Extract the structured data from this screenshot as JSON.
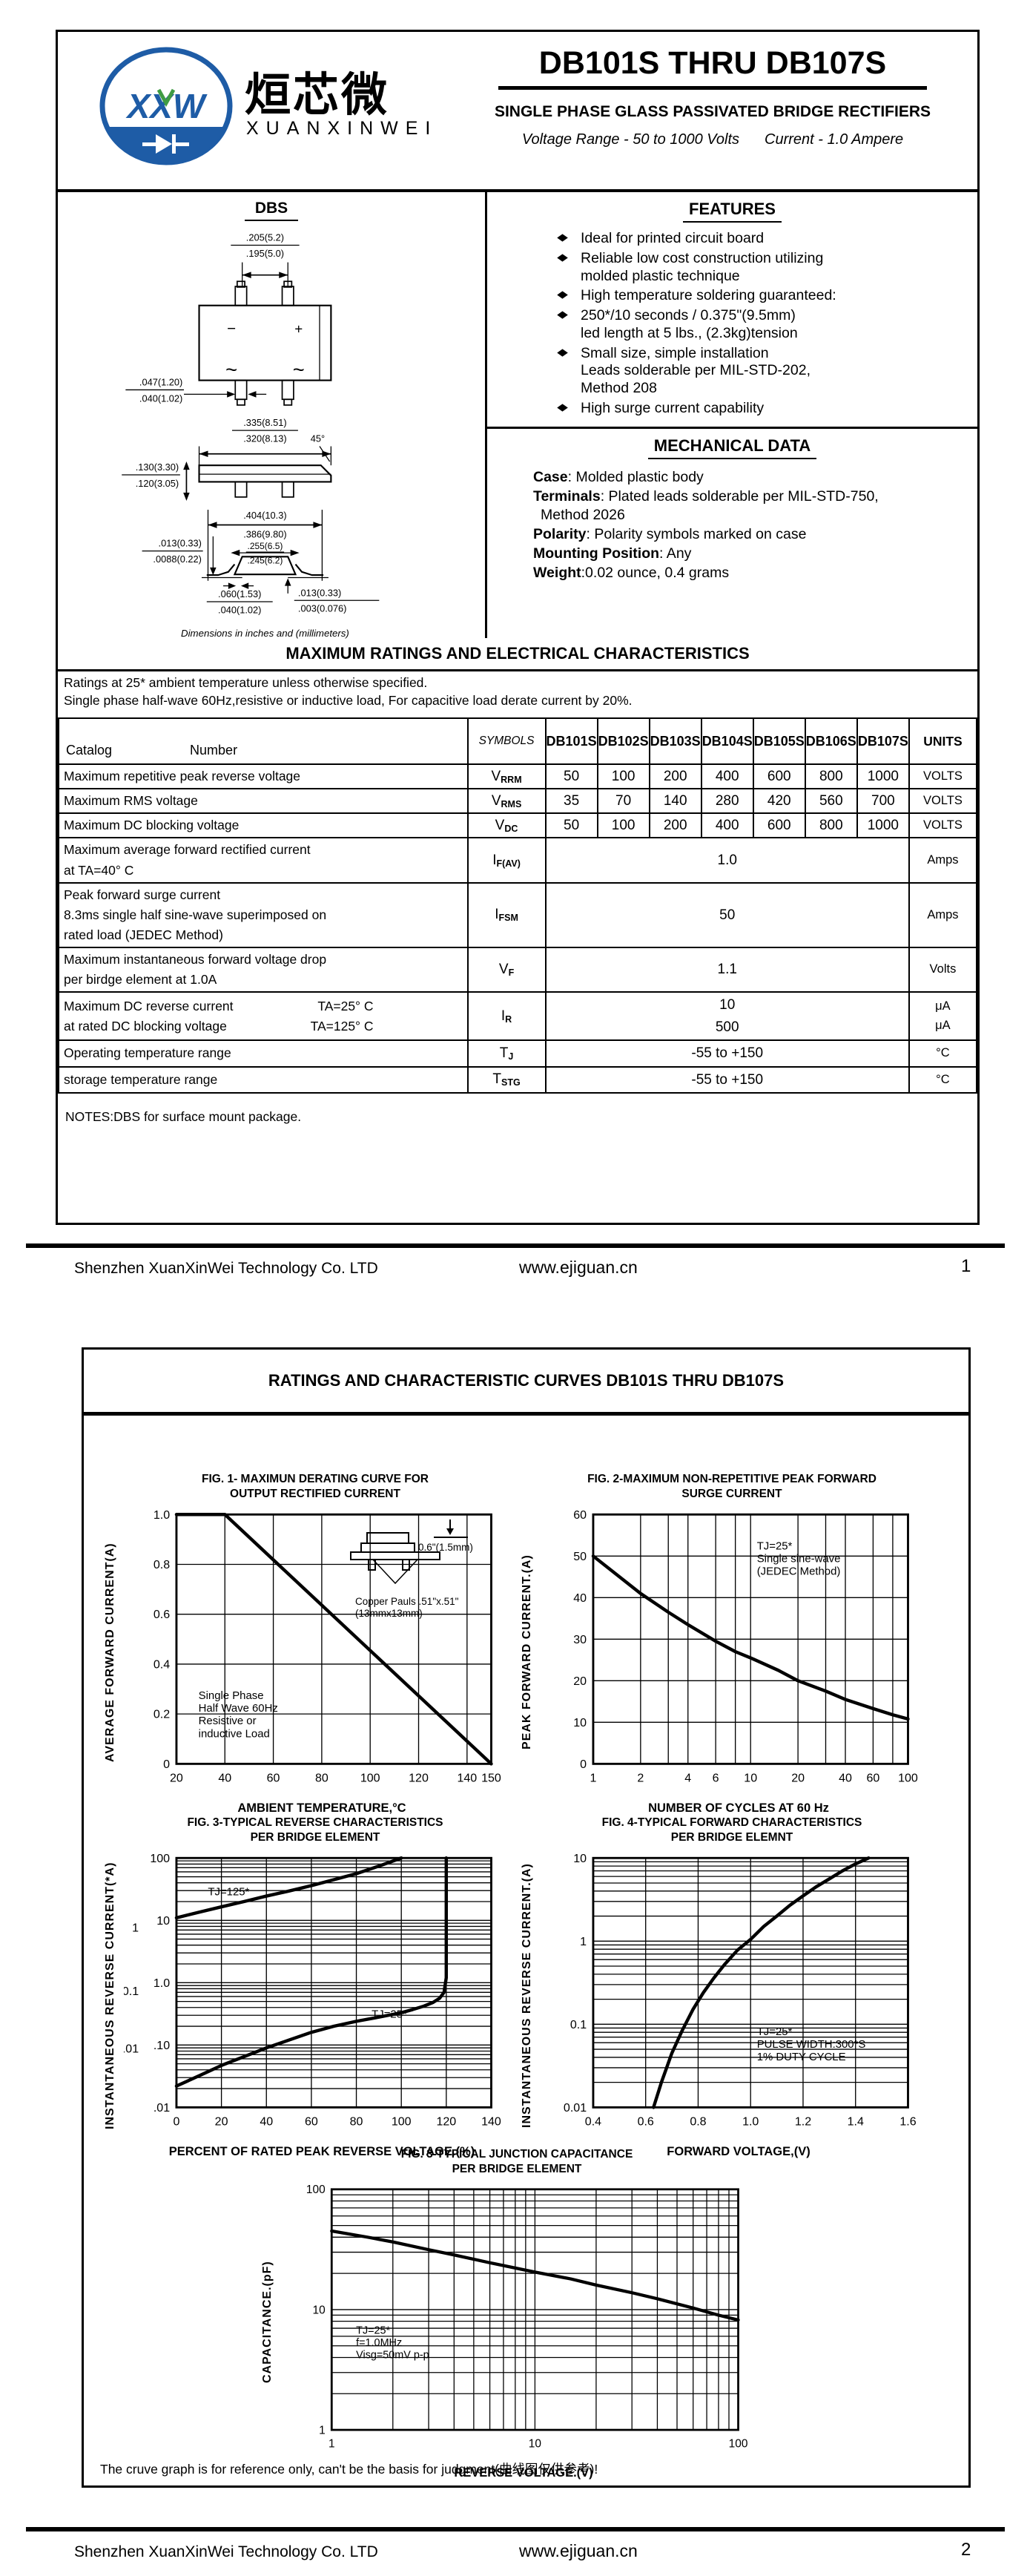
{
  "header": {
    "title": "DB101S THRU DB107S",
    "subtitle": "SINGLE PHASE GLASS PASSIVATED BRIDGE RECTIFIERS",
    "voltage_range": "Voltage Range - 50 to 1000 Volts",
    "current": "Current - 1.0 Ampere",
    "logo": {
      "xxw": "XXW",
      "chinese": "烜芯微",
      "english": "XUANXINWEI"
    }
  },
  "package": {
    "name": "DBS",
    "caption": "Dimensions in inches and (millimeters)",
    "dims": {
      "lead_pitch_top": {
        "a": ".205(5.2)",
        "b": ".195(5.0)"
      },
      "lead_width": {
        "a": ".047(1.20)",
        "b": ".040(1.02)"
      },
      "body_width": {
        "a": ".335(8.51)",
        "b": ".320(8.13)"
      },
      "chamfer": "45°",
      "body_height": {
        "a": ".130(3.30)",
        "b": ".120(3.05)"
      },
      "overall_width": {
        "a": ".404(10.3)",
        "b": ".386(9.80)"
      },
      "inner_width": {
        "a": ".255(6.5)",
        "b": ".245(6.2)"
      },
      "standoff": {
        "a": ".013(0.33)",
        "b": ".0088(0.22)"
      },
      "lead_length": {
        "a": ".060(1.53)",
        "b": ".040(1.02)"
      },
      "coplanarity": {
        "a": ".013(0.33)",
        "b": ".003(0.076)"
      },
      "minus": "−",
      "plus": "+",
      "ac1": "~",
      "ac2": "~"
    }
  },
  "features": {
    "title": "FEATURES",
    "items": [
      [
        "Ideal for printed circuit board"
      ],
      [
        "Reliable low cost construction utilizing",
        "molded plastic technique"
      ],
      [
        "High temperature soldering guaranteed:"
      ],
      [
        "250*/10 seconds / 0.375\"(9.5mm)",
        "led length at 5 lbs., (2.3kg)tension"
      ],
      [
        "Small size, simple installation",
        "Leads solderable per MIL-STD-202,",
        "Method 208"
      ],
      [
        "High surge current capability"
      ]
    ]
  },
  "mechanical": {
    "title": "MECHANICAL DATA",
    "items": [
      {
        "label": "Case",
        "text": ": Molded plastic body"
      },
      {
        "label": "Terminals",
        "text": ": Plated leads solderable per MIL-STD-750,",
        "text2": "Method 2026"
      },
      {
        "label": "Polarity",
        "text": ": Polarity symbols marked on case"
      },
      {
        "label": "Mounting Position",
        "text": ": Any"
      },
      {
        "label": "Weight",
        "text": ":0.02 ounce, 0.4 grams"
      }
    ]
  },
  "ratings": {
    "title": "MAXIMUM RATINGS AND ELECTRICAL CHARACTERISTICS",
    "note1": "Ratings at 25* ambient temperature unless otherwise specified.",
    "note2": "Single phase half-wave 60Hz,resistive or inductive load, For capacitive load derate current by 20%.",
    "table": {
      "catalog": "Catalog",
      "number": "Number",
      "symbols_h": "SYMBOLS",
      "units_h": "UNITS",
      "models": [
        "DB101S",
        "DB102S",
        "DB103S",
        "DB104S",
        "DB105S",
        "DB106S",
        "DB107S"
      ],
      "rows": [
        {
          "label_lines": [
            "Maximum repetitive peak reverse voltage"
          ],
          "sym": [
            "V",
            "RRM"
          ],
          "type": "cols",
          "values": [
            "50",
            "100",
            "200",
            "400",
            "600",
            "800",
            "1000"
          ],
          "units": [
            "VOLTS"
          ]
        },
        {
          "label_lines": [
            "Maximum RMS voltage"
          ],
          "sym": [
            "V",
            "RMS"
          ],
          "type": "cols",
          "values": [
            "35",
            "70",
            "140",
            "280",
            "420",
            "560",
            "700"
          ],
          "units": [
            "VOLTS"
          ]
        },
        {
          "label_lines": [
            "Maximum DC blocking voltage"
          ],
          "sym": [
            "V",
            "DC"
          ],
          "type": "cols",
          "values": [
            "50",
            "100",
            "200",
            "400",
            "600",
            "800",
            "1000"
          ],
          "units": [
            "VOLTS"
          ]
        },
        {
          "label_lines": [
            "Maximum average forward rectified current",
            "at TA=40° C"
          ],
          "sym": [
            "I",
            "F(AV)"
          ],
          "type": "span",
          "values": [
            "1.0"
          ],
          "units": [
            "Amps"
          ]
        },
        {
          "label_lines": [
            "Peak forward surge current",
            "8.3ms single half sine-wave superimposed on",
            "rated load (JEDEC Method)"
          ],
          "sym": [
            "I",
            "FSM"
          ],
          "type": "span",
          "values": [
            "50"
          ],
          "units": [
            "Amps"
          ]
        },
        {
          "label_lines": [
            "Maximum instantaneous forward voltage drop",
            "per birdge element at 1.0A"
          ],
          "sym": [
            "V",
            "F"
          ],
          "type": "span",
          "values": [
            "1.1"
          ],
          "units": [
            "Volts"
          ]
        },
        {
          "label_lines": [
            "Maximum DC reverse current",
            "at rated DC blocking voltage"
          ],
          "conds": [
            "TA=25° C",
            "TA=125° C"
          ],
          "sym": [
            "I",
            "R"
          ],
          "type": "span",
          "values": [
            "10",
            "500"
          ],
          "units": [
            "μA",
            "μA"
          ]
        },
        {
          "label_lines": [
            "Operating temperature range"
          ],
          "sym": [
            "T",
            "J"
          ],
          "type": "span",
          "values": [
            "-55 to +150"
          ],
          "units": [
            "°C"
          ]
        },
        {
          "label_lines": [
            "storage temperature range"
          ],
          "sym": [
            "T",
            "STG"
          ],
          "type": "span",
          "values": [
            "-55 to +150"
          ],
          "units": [
            "°C"
          ]
        }
      ]
    },
    "notes": "NOTES:DBS for surface mount package."
  },
  "footer": {
    "company": "Shenzhen XuanXinWei Technology Co. LTD",
    "url": "www.ejiguan.cn",
    "page1": "1",
    "page2": "2"
  },
  "page2": {
    "title": "RATINGS AND CHARACTERISTIC CURVES DB101S THRU DB107S",
    "note": "The cruve graph is for reference only, can't be the basis for judgment(曲线图仅供参考)!"
  },
  "chart_data": [
    {
      "id": "fig1",
      "type": "line",
      "title_line1": "FIG. 1- MAXIMUN DERATING CURVE FOR",
      "title_line2": "OUTPUT RECTIFIED CURRENT",
      "x": {
        "type": "linear",
        "min": 20,
        "max": 150,
        "ticks": [
          20,
          40,
          60,
          80,
          100,
          120,
          140,
          150
        ],
        "tick_labels": [
          "20",
          "40",
          "60",
          "80",
          "100",
          "120",
          "140",
          "150"
        ],
        "label": "AMBIENT TEMPERATURE,°C"
      },
      "y": {
        "type": "linear",
        "min": 0,
        "max": 1.0,
        "ticks": [
          0,
          0.2,
          0.4,
          0.6,
          0.8,
          1.0
        ],
        "tick_labels": [
          "0",
          "0.2",
          "0.4",
          "0.6",
          "0.8",
          "1.0"
        ],
        "label": "AVERAGE FORWARD CURRENT(A)"
      },
      "series": [
        {
          "name": "derating",
          "points": [
            [
              20,
              1.0
            ],
            [
              40,
              1.0
            ],
            [
              150,
              0
            ]
          ]
        }
      ],
      "annotations": [
        {
          "fx": 0.07,
          "fy": 0.74,
          "lines": [
            "Single Phase",
            "Half Wave 60Hz",
            "Resistive or",
            "inductive Load"
          ]
        }
      ],
      "inset": {
        "dim": "0.6\"(1.5mm)",
        "cap1": "Copper Pauls .51\"x.51\"",
        "cap2": "(13mmx13mm)"
      }
    },
    {
      "id": "fig2",
      "type": "line",
      "title_line1": "FIG. 2-MAXIMUM NON-REPETITIVE PEAK FORWARD",
      "title_line2": "SURGE CURRENT",
      "x": {
        "type": "log",
        "min": 1,
        "max": 100,
        "ticks": [
          1,
          2,
          4,
          6,
          10,
          20,
          40,
          60,
          100
        ],
        "tick_labels": [
          "1",
          "2",
          "4",
          "6",
          "10",
          "20",
          "40",
          "60",
          "100"
        ],
        "grid": [
          2,
          3,
          4,
          6,
          8,
          10,
          20,
          30,
          40,
          60,
          80,
          100
        ],
        "label": "NUMBER OF CYCLES AT 60 Hz"
      },
      "y": {
        "type": "linear",
        "min": 0,
        "max": 60,
        "ticks": [
          0,
          10,
          20,
          30,
          40,
          50,
          60
        ],
        "tick_labels": [
          "0",
          "10",
          "20",
          "30",
          "40",
          "50",
          "60"
        ],
        "label": "PEAK FORWARD CURRENT.(A)"
      },
      "series": [
        {
          "name": "surge",
          "points": [
            [
              1,
              50
            ],
            [
              2,
              41
            ],
            [
              3,
              36.5
            ],
            [
              4,
              33.5
            ],
            [
              6,
              29.5
            ],
            [
              8,
              27
            ],
            [
              10,
              25.5
            ],
            [
              15,
              22.5
            ],
            [
              20,
              20
            ],
            [
              30,
              17.5
            ],
            [
              40,
              15.5
            ],
            [
              60,
              13.3
            ],
            [
              80,
              11.8
            ],
            [
              100,
              10.8
            ]
          ]
        }
      ],
      "annotations": [
        {
          "fx": 0.52,
          "fy": 0.14,
          "lines": [
            "TJ=25*",
            "Single sine-wave",
            "(JEDEC Method)"
          ]
        }
      ]
    },
    {
      "id": "fig3",
      "type": "line",
      "title_line1": "FIG. 3-TYPICAL REVERSE CHARACTERISTICS",
      "title_line2": "PER BRIDGE ELEMENT",
      "x": {
        "type": "linear",
        "min": 0,
        "max": 140,
        "ticks": [
          0,
          20,
          40,
          60,
          80,
          100,
          120,
          140
        ],
        "tick_labels": [
          "0",
          "20",
          "40",
          "60",
          "80",
          "100",
          "120",
          "140"
        ],
        "label": "PERCENT OF RATED PEAK REVERSE VOLTAGE.(%)"
      },
      "y": {
        "type": "log",
        "min": 0.01,
        "max": 100,
        "ticks": [
          100,
          10,
          1,
          0.1,
          0.01
        ],
        "tick_labels": [
          "100",
          "10",
          "1.0",
          ".10",
          ".01"
        ],
        "label": "INSTANTANEOUS REVERSE CURRENT(*A)"
      },
      "outer_labels": [
        {
          "text": "1",
          "fy": 0.295
        },
        {
          "text": "0.1",
          "fy": 0.55
        },
        {
          "text": "0.01",
          "fy": 0.78
        }
      ],
      "series": [
        {
          "name": "TJ=125",
          "points": [
            [
              0,
              11
            ],
            [
              10,
              13.5
            ],
            [
              20,
              16.5
            ],
            [
              30,
              20
            ],
            [
              40,
              24.5
            ],
            [
              50,
              29.5
            ],
            [
              60,
              36
            ],
            [
              70,
              45
            ],
            [
              80,
              56
            ],
            [
              90,
              74
            ],
            [
              100,
              100
            ]
          ]
        },
        {
          "name": "TJ=25",
          "points": [
            [
              0,
              0.022
            ],
            [
              10,
              0.032
            ],
            [
              20,
              0.047
            ],
            [
              30,
              0.065
            ],
            [
              40,
              0.09
            ],
            [
              50,
              0.12
            ],
            [
              60,
              0.16
            ],
            [
              70,
              0.2
            ],
            [
              80,
              0.24
            ],
            [
              90,
              0.28
            ],
            [
              100,
              0.33
            ],
            [
              105,
              0.37
            ],
            [
              110,
              0.42
            ],
            [
              114,
              0.48
            ],
            [
              117,
              0.56
            ],
            [
              119,
              0.7
            ],
            [
              120,
              1.2
            ],
            [
              120,
              100
            ]
          ]
        }
      ],
      "annotations": [
        {
          "fx": 0.1,
          "fy": 0.15,
          "lines": [
            "TJ=125*"
          ]
        },
        {
          "fx": 0.62,
          "fy": 0.64,
          "lines": [
            "TJ=25*"
          ]
        }
      ]
    },
    {
      "id": "fig4",
      "type": "line",
      "title_line1": "FIG. 4-TYPICAL FORWARD CHARACTERISTICS",
      "title_line2": "PER BRIDGE ELEMNT",
      "x": {
        "type": "linear",
        "min": 0.4,
        "max": 1.6,
        "ticks": [
          0.4,
          0.6,
          0.8,
          1.0,
          1.2,
          1.4,
          1.6
        ],
        "tick_labels": [
          "0.4",
          "0.6",
          "0.8",
          "1.0",
          "1.2",
          "1.4",
          "1.6"
        ],
        "label": "FORWARD VOLTAGE,(V)"
      },
      "y": {
        "type": "log",
        "min": 0.01,
        "max": 10,
        "ticks": [
          10,
          1,
          0.1,
          0.01
        ],
        "tick_labels": [
          "10",
          "1",
          "0.1",
          "0.01"
        ],
        "label": "INSTANTANEOUS REVERSE CURRENT.(A)"
      },
      "series": [
        {
          "name": "forward",
          "points": [
            [
              0.63,
              0.01
            ],
            [
              0.66,
              0.02
            ],
            [
              0.7,
              0.045
            ],
            [
              0.74,
              0.085
            ],
            [
              0.78,
              0.15
            ],
            [
              0.82,
              0.24
            ],
            [
              0.86,
              0.36
            ],
            [
              0.9,
              0.52
            ],
            [
              0.95,
              0.78
            ],
            [
              1.0,
              1.05
            ],
            [
              1.05,
              1.5
            ],
            [
              1.1,
              2.0
            ],
            [
              1.15,
              2.7
            ],
            [
              1.2,
              3.5
            ],
            [
              1.25,
              4.5
            ],
            [
              1.3,
              5.6
            ],
            [
              1.35,
              7.0
            ],
            [
              1.4,
              8.5
            ],
            [
              1.45,
              10
            ]
          ]
        }
      ],
      "annotations": [
        {
          "fx": 0.52,
          "fy": 0.71,
          "lines": [
            "TJ=25*",
            "PULSE WIDTH:300*S",
            "1% DUTY CYCLE"
          ]
        }
      ]
    },
    {
      "id": "fig5",
      "type": "line",
      "title_line1": "FIG. 3-TYPICAL JUNCTION CAPACITANCE",
      "title_line2": "PER BRIDGE ELEMENT",
      "x": {
        "type": "log",
        "min": 1,
        "max": 100,
        "ticks": [
          1,
          10,
          100
        ],
        "tick_labels": [
          "1",
          "10",
          "100"
        ],
        "label": "REVERSE VOLTAGE.(V)"
      },
      "y": {
        "type": "log",
        "min": 1,
        "max": 100,
        "ticks": [
          100,
          10,
          1
        ],
        "tick_labels": [
          "100",
          "10",
          "1"
        ],
        "label": "CAPACITANCE.(pF)"
      },
      "series": [
        {
          "name": "capacitance",
          "points": [
            [
              1,
              45
            ],
            [
              1.5,
              40
            ],
            [
              2,
              36.5
            ],
            [
              3,
              31.5
            ],
            [
              4,
              28.5
            ],
            [
              6,
              24.5
            ],
            [
              10,
              20.5
            ],
            [
              15,
              18
            ],
            [
              20,
              16
            ],
            [
              30,
              13.8
            ],
            [
              40,
              12.3
            ],
            [
              60,
              10.3
            ],
            [
              80,
              9.0
            ],
            [
              100,
              8.2
            ]
          ]
        }
      ],
      "annotations": [
        {
          "fx": 0.06,
          "fy": 0.6,
          "lines": [
            "TJ=25*",
            "f=1.0MHz",
            "Visg=50mV p-p"
          ]
        }
      ]
    }
  ]
}
